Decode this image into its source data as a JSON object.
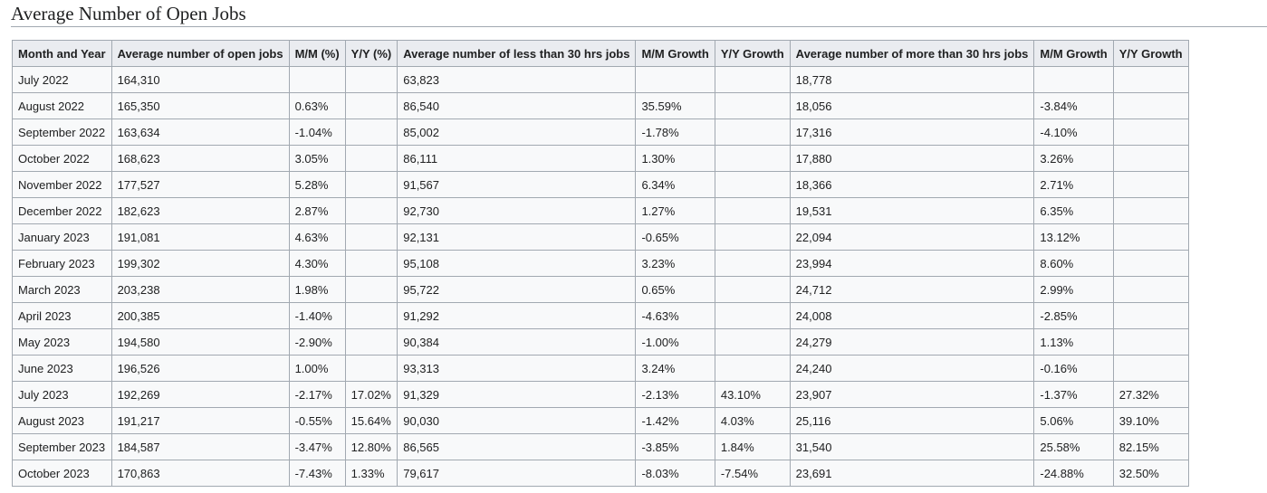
{
  "page": {
    "heading": "Average Number of Open Jobs"
  },
  "table": {
    "headers": [
      "Month and Year",
      "Average number of open jobs",
      "M/M (%)",
      "Y/Y (%)",
      "Average number of less than 30 hrs jobs",
      "M/M Growth",
      "Y/Y Growth",
      "Average number of more than 30 hrs jobs",
      "M/M Growth",
      "Y/Y Growth"
    ],
    "rows": [
      [
        "July 2022",
        "164,310",
        "",
        "",
        "63,823",
        "",
        "",
        "18,778",
        "",
        ""
      ],
      [
        "August 2022",
        "165,350",
        "0.63%",
        "",
        "86,540",
        "35.59%",
        "",
        "18,056",
        "-3.84%",
        ""
      ],
      [
        "September 2022",
        "163,634",
        "-1.04%",
        "",
        "85,002",
        "-1.78%",
        "",
        "17,316",
        "-4.10%",
        ""
      ],
      [
        "October 2022",
        "168,623",
        "3.05%",
        "",
        "86,111",
        "1.30%",
        "",
        "17,880",
        "3.26%",
        ""
      ],
      [
        "November 2022",
        "177,527",
        "5.28%",
        "",
        "91,567",
        "6.34%",
        "",
        "18,366",
        "2.71%",
        ""
      ],
      [
        "December 2022",
        "182,623",
        "2.87%",
        "",
        "92,730",
        "1.27%",
        "",
        "19,531",
        "6.35%",
        ""
      ],
      [
        "January 2023",
        "191,081",
        "4.63%",
        "",
        "92,131",
        "-0.65%",
        "",
        "22,094",
        "13.12%",
        ""
      ],
      [
        "February 2023",
        "199,302",
        "4.30%",
        "",
        "95,108",
        "3.23%",
        "",
        "23,994",
        "8.60%",
        ""
      ],
      [
        "March 2023",
        "203,238",
        "1.98%",
        "",
        "95,722",
        "0.65%",
        "",
        "24,712",
        "2.99%",
        ""
      ],
      [
        "April 2023",
        "200,385",
        "-1.40%",
        "",
        "91,292",
        "-4.63%",
        "",
        "24,008",
        "-2.85%",
        ""
      ],
      [
        "May 2023",
        "194,580",
        "-2.90%",
        "",
        "90,384",
        "-1.00%",
        "",
        "24,279",
        "1.13%",
        ""
      ],
      [
        "June 2023",
        "196,526",
        "1.00%",
        "",
        "93,313",
        "3.24%",
        "",
        "24,240",
        "-0.16%",
        ""
      ],
      [
        "July 2023",
        "192,269",
        "-2.17%",
        "17.02%",
        "91,329",
        "-2.13%",
        "43.10%",
        "23,907",
        "-1.37%",
        "27.32%"
      ],
      [
        "August 2023",
        "191,217",
        "-0.55%",
        "15.64%",
        "90,030",
        "-1.42%",
        "4.03%",
        "25,116",
        "5.06%",
        "39.10%"
      ],
      [
        "September 2023",
        "184,587",
        "-3.47%",
        "12.80%",
        "86,565",
        "-3.85%",
        "1.84%",
        "31,540",
        "25.58%",
        "82.15%"
      ],
      [
        "October 2023",
        "170,863",
        "-7.43%",
        "1.33%",
        "79,617",
        "-8.03%",
        "-7.54%",
        "23,691",
        "-24.88%",
        "32.50%"
      ]
    ]
  }
}
